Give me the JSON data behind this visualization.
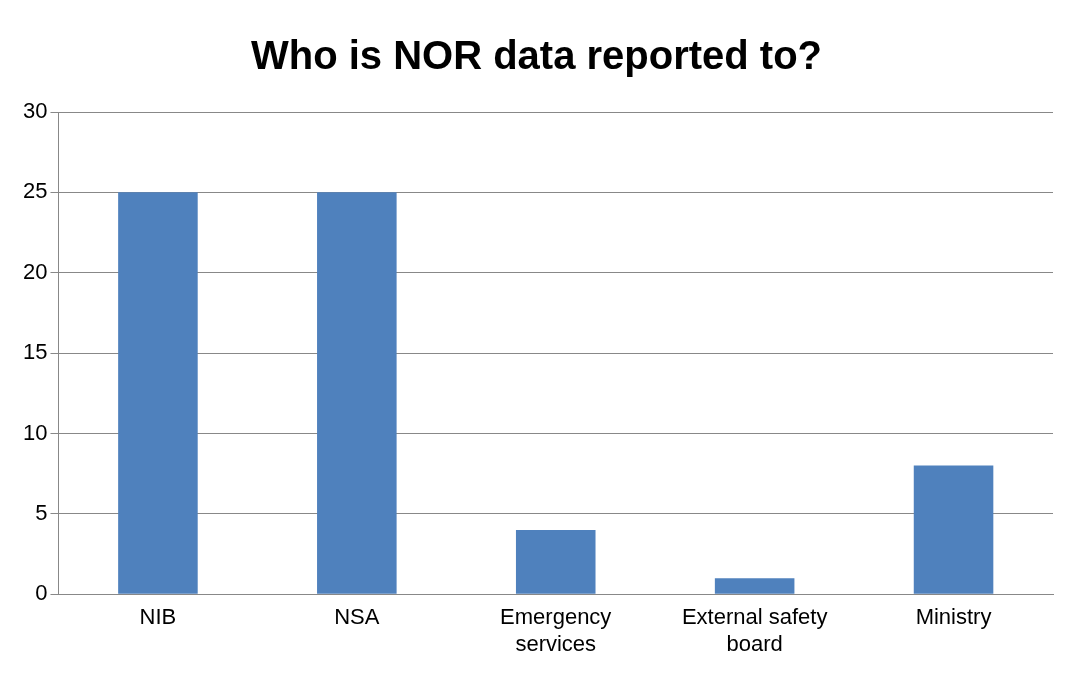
{
  "chart_data": {
    "type": "bar",
    "title": "Who is NOR data reported to?",
    "categories": [
      "NIB",
      "NSA",
      "Emergency services",
      "External safety board",
      "Ministry"
    ],
    "values": [
      25,
      25,
      4,
      1,
      8
    ],
    "color": "#4f81bd",
    "ylim": [
      0,
      30
    ],
    "yticks": [
      0,
      5,
      10,
      15,
      20,
      25,
      30
    ],
    "grid": "y",
    "legend": false
  }
}
